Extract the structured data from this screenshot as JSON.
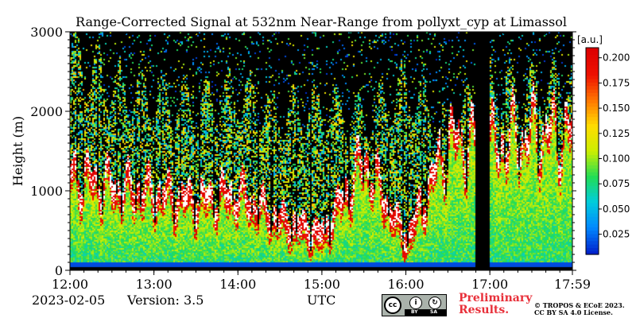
{
  "chart_data": {
    "type": "heatmap",
    "title": "Range-Corrected Signal at 532nm Near-Range from pollyxt_cyp at Limassol",
    "xlabel": "",
    "ylabel": "Height (m)",
    "x_tick_labels": [
      "12:00",
      "13:00",
      "14:00",
      "15:00",
      "16:00",
      "17:00",
      "17:59"
    ],
    "x_ticks_hours": [
      12,
      13,
      14,
      15,
      16,
      17,
      17.983
    ],
    "xlim_hours": [
      12,
      17.983
    ],
    "y_tick_labels": [
      "0",
      "1000",
      "2000",
      "3000"
    ],
    "y_ticks": [
      0,
      1000,
      2000,
      3000
    ],
    "ylim": [
      0,
      3000
    ],
    "colorbar": {
      "unit": "[a.u.]",
      "tick_labels": [
        "0.025",
        "0.050",
        "0.075",
        "0.100",
        "0.125",
        "0.150",
        "0.175",
        "0.200"
      ],
      "ticks": [
        0.025,
        0.05,
        0.075,
        0.1,
        0.125,
        0.15,
        0.175,
        0.2
      ],
      "range": [
        0.005,
        0.21
      ],
      "colormap": [
        "#0022cc",
        "#0088ff",
        "#00ccdd",
        "#22dd55",
        "#ccee00",
        "#ffdd00",
        "#ff7700",
        "#ee1100",
        "#dd0000"
      ]
    },
    "no_signal_columns_hours": [
      [
        16.82,
        16.98
      ]
    ],
    "signal_profiles": [
      {
        "t": 12.0,
        "cloud_base": 1300,
        "top": 3000
      },
      {
        "t": 12.5,
        "cloud_base": 1100,
        "top": 2600
      },
      {
        "t": 13.0,
        "cloud_base": 1000,
        "top": 2400
      },
      {
        "t": 13.5,
        "cloud_base": 900,
        "top": 2300
      },
      {
        "t": 14.0,
        "cloud_base": 1000,
        "top": 2500
      },
      {
        "t": 14.5,
        "cloud_base": 600,
        "top": 2200
      },
      {
        "t": 15.0,
        "cloud_base": 400,
        "top": 2300
      },
      {
        "t": 15.5,
        "cloud_base": 1500,
        "top": 2100
      },
      {
        "t": 16.0,
        "cloud_base": 300,
        "top": 2600
      },
      {
        "t": 16.5,
        "cloud_base": 1800,
        "top": 2000
      },
      {
        "t": 17.0,
        "cloud_base": 1700,
        "top": 2600
      },
      {
        "t": 17.5,
        "cloud_base": 1900,
        "top": 2500
      },
      {
        "t": 17.98,
        "cloud_base": 1900,
        "top": 2700
      }
    ]
  },
  "footer": {
    "date": "2023-02-05",
    "version": "Version: 3.5",
    "x_unit": "UTC",
    "preliminary_line1": "Preliminary",
    "preliminary_line2": "Results.",
    "copyright_line1": "© TROPOS & ECoE 2023.",
    "copyright_line2": "CC BY SA 4.0 License.",
    "license_badge_cc": "cc",
    "license_badge_by": "BY",
    "license_badge_sa": "SA"
  }
}
